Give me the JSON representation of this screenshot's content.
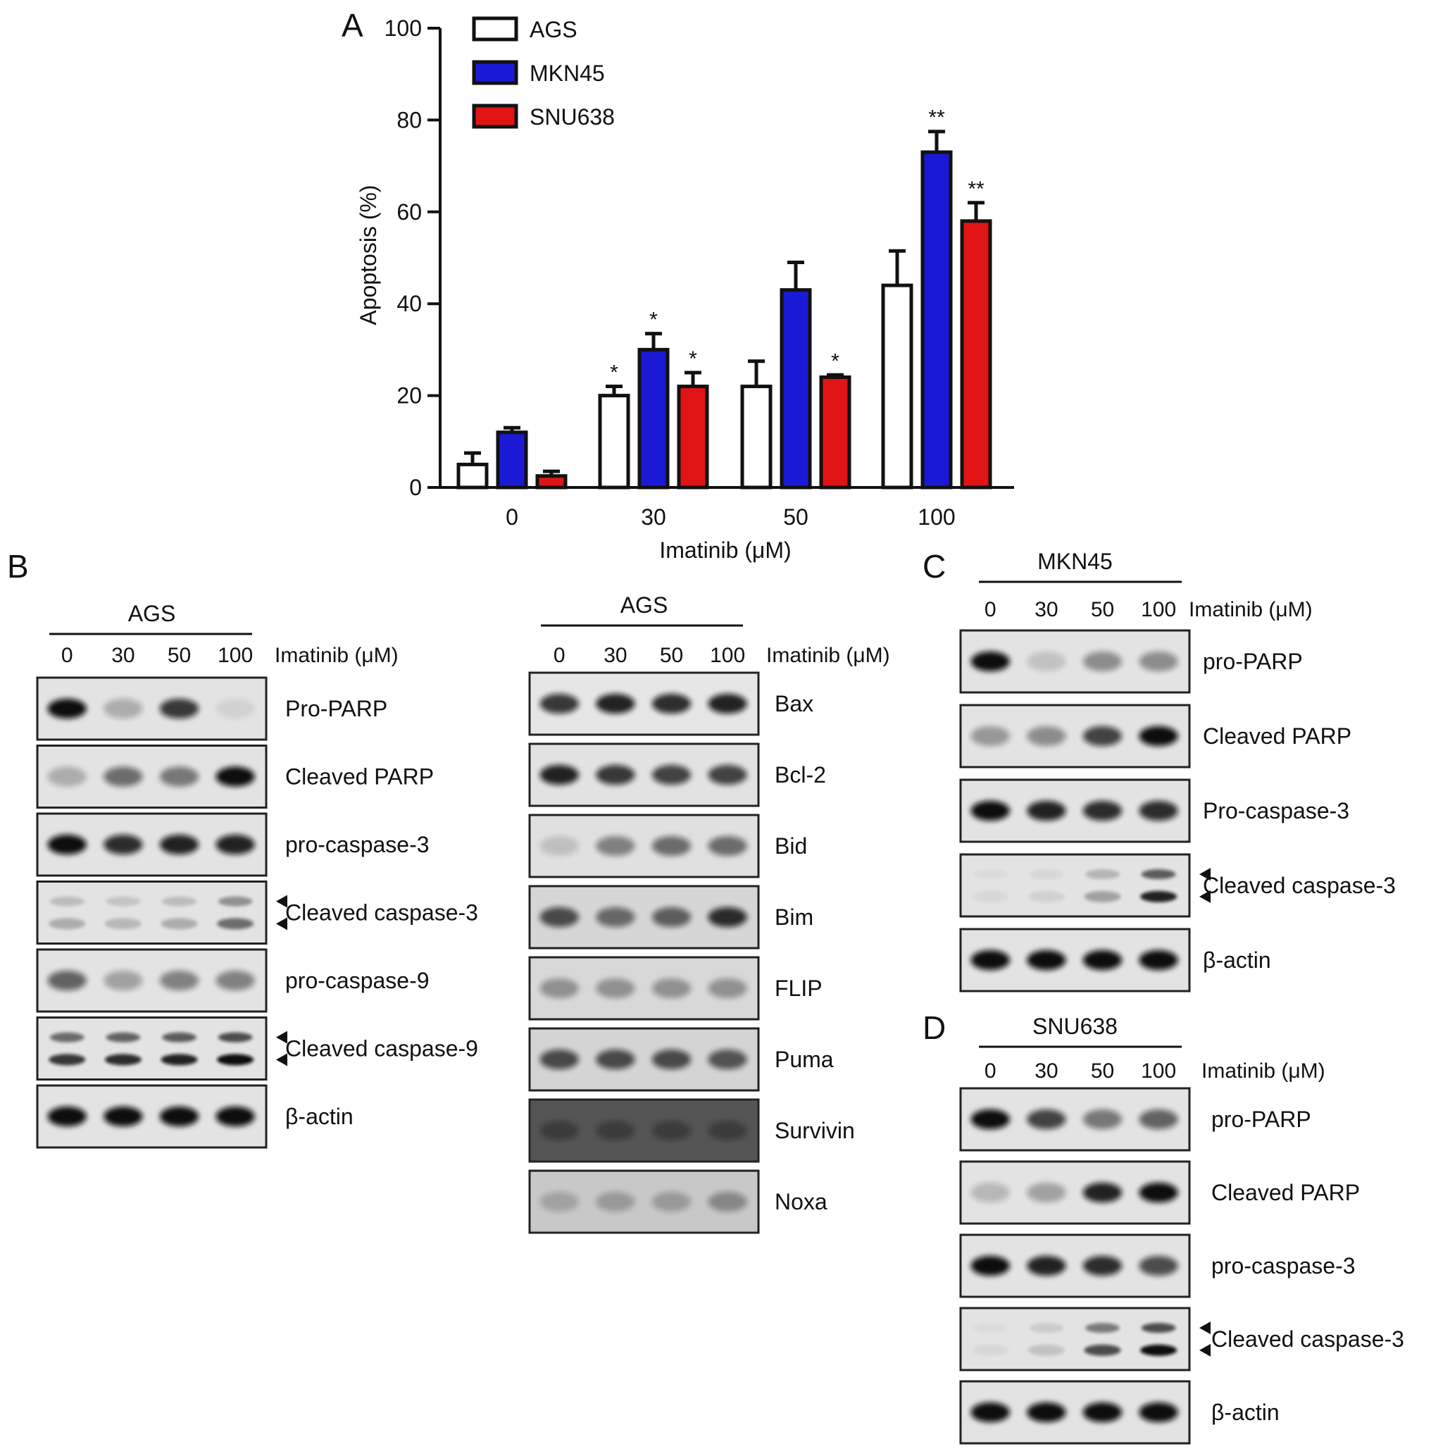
{
  "panels": {
    "A": {
      "letter": "A",
      "chart_data": {
        "type": "bar",
        "title": "",
        "xlabel": "Imatinib (μM)",
        "ylabel": "Apoptosis (%)",
        "categories": [
          "0",
          "30",
          "50",
          "100"
        ],
        "ylim": [
          0,
          100
        ],
        "yticks": [
          "0",
          "20",
          "40",
          "60",
          "80",
          "100"
        ],
        "grid": false,
        "legend_position": "top-left",
        "series": [
          {
            "name": "AGS",
            "color": "#ffffff",
            "values": [
              5,
              20,
              22,
              44
            ],
            "errors": [
              2.5,
              2,
              5.5,
              7.5
            ],
            "sig": [
              "",
              "*",
              "",
              ""
            ]
          },
          {
            "name": "MKN45",
            "color": "#1a1ad6",
            "values": [
              12,
              30,
              43,
              73
            ],
            "errors": [
              1,
              3.5,
              6,
              4.5
            ],
            "sig": [
              "",
              "*",
              "",
              "**"
            ]
          },
          {
            "name": "SNU638",
            "color": "#e01414",
            "values": [
              2.5,
              22,
              24,
              58
            ],
            "errors": [
              1,
              3,
              0.5,
              4
            ],
            "sig": [
              "",
              "*",
              "*",
              "**"
            ]
          }
        ]
      }
    },
    "B": {
      "letter": "B",
      "left": {
        "cell_line": "AGS",
        "doses": [
          "0",
          "30",
          "50",
          "100"
        ],
        "dose_label": "Imatinib (μM)",
        "blots": [
          {
            "label": "Pro-PARP"
          },
          {
            "label": "Cleaved PARP"
          },
          {
            "label": "pro-caspase-3"
          },
          {
            "label": "Cleaved caspase-3"
          },
          {
            "label": "pro-caspase-9"
          },
          {
            "label": "Cleaved caspase-9"
          },
          {
            "label": "β-actin"
          }
        ]
      },
      "right": {
        "cell_line": "AGS",
        "doses": [
          "0",
          "30",
          "50",
          "100"
        ],
        "dose_label": "Imatinib (μM)",
        "blots": [
          {
            "label": "Bax"
          },
          {
            "label": "Bcl-2"
          },
          {
            "label": "Bid"
          },
          {
            "label": "Bim"
          },
          {
            "label": "FLIP"
          },
          {
            "label": "Puma"
          },
          {
            "label": "Survivin"
          },
          {
            "label": "Noxa"
          }
        ]
      }
    },
    "C": {
      "letter": "C",
      "cell_line": "MKN45",
      "doses": [
        "0",
        "30",
        "50",
        "100"
      ],
      "dose_label": "Imatinib (μM)",
      "blots": [
        {
          "label": "pro-PARP"
        },
        {
          "label": "Cleaved PARP"
        },
        {
          "label": "Pro-caspase-3"
        },
        {
          "label": "Cleaved caspase-3"
        },
        {
          "label": "β-actin"
        }
      ]
    },
    "D": {
      "letter": "D",
      "cell_line": "SNU638",
      "doses": [
        "0",
        "30",
        "50",
        "100"
      ],
      "dose_label": "Imatinib (μM)",
      "blots": [
        {
          "label": "pro-PARP"
        },
        {
          "label": "Cleaved PARP"
        },
        {
          "label": "pro-caspase-3"
        },
        {
          "label": "Cleaved caspase-3"
        },
        {
          "label": "β-actin"
        }
      ]
    }
  }
}
